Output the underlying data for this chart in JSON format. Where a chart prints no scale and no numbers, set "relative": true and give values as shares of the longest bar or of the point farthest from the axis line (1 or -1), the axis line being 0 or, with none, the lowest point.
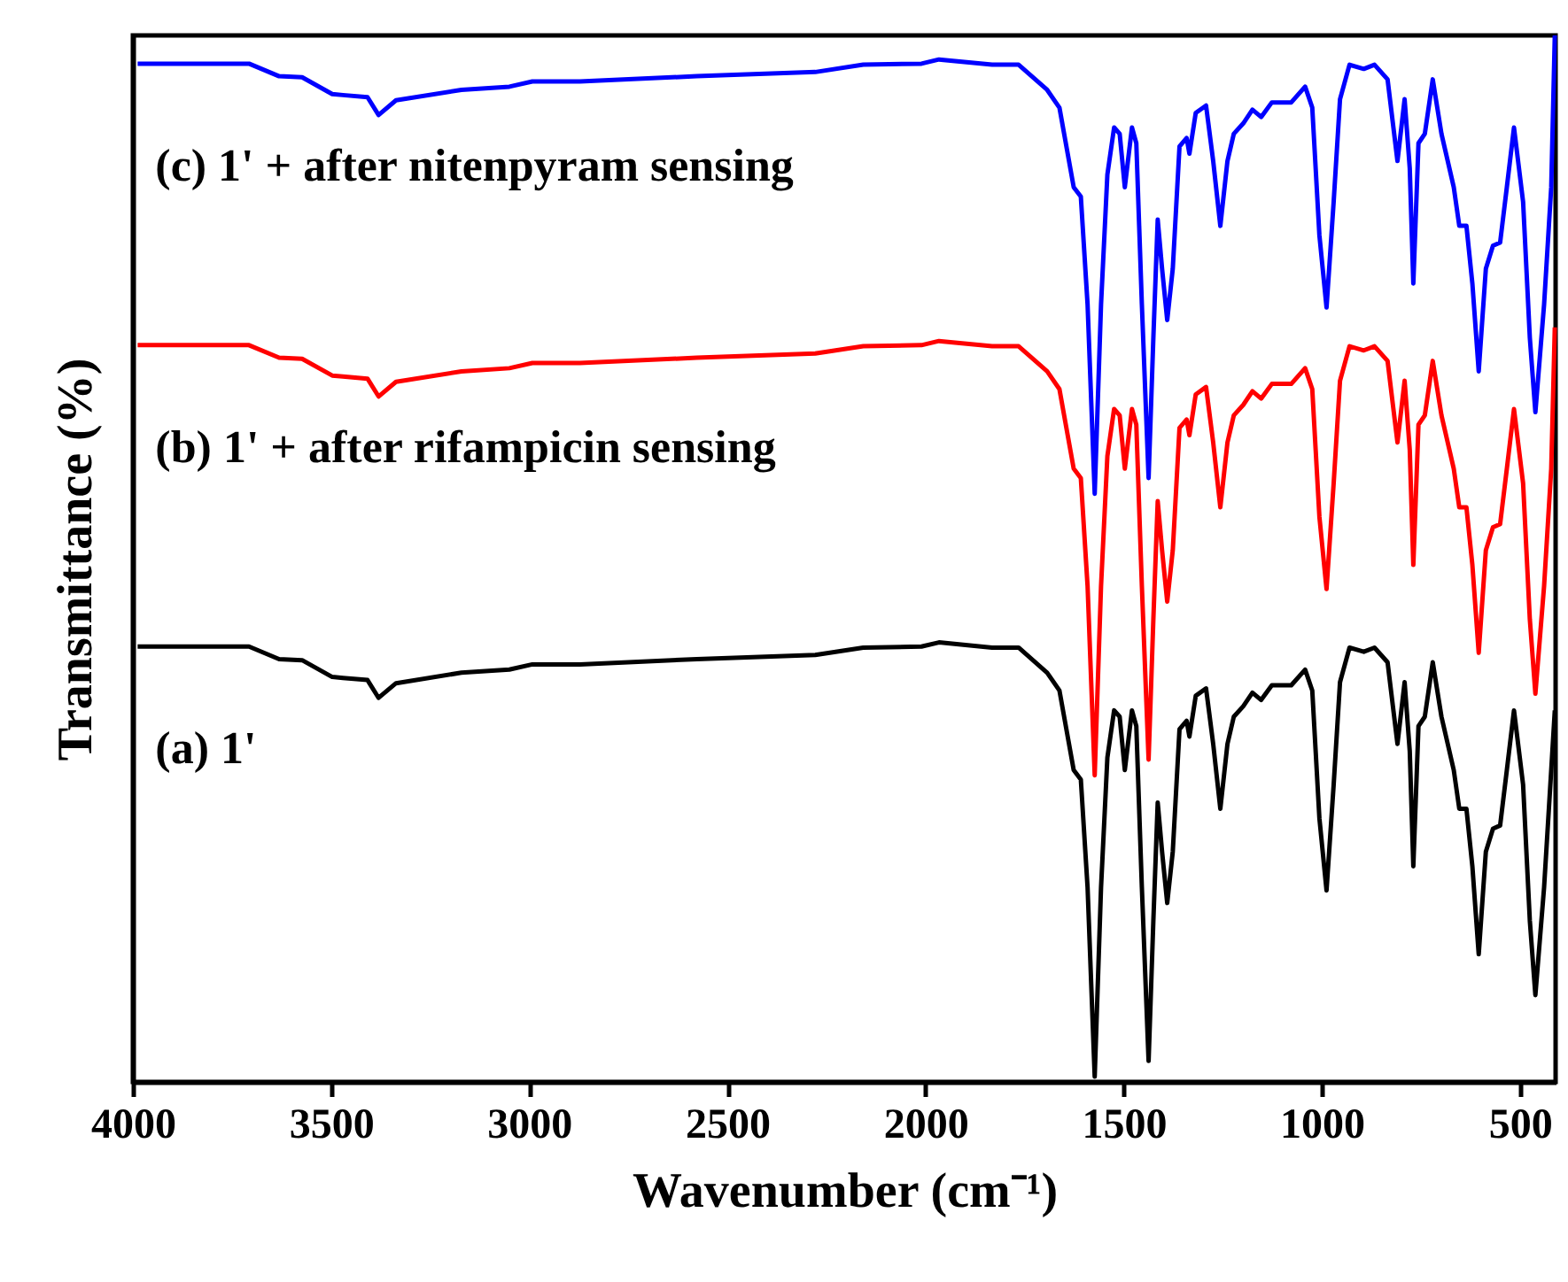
{
  "chart_data": {
    "type": "line",
    "relative": true,
    "xlabel": "Wavenumber (cm⁻¹)",
    "ylabel": "Transmittance (%)",
    "xlim": [
      4000,
      410
    ],
    "xticks": [
      4000,
      3500,
      3000,
      2500,
      2000,
      1500,
      1000,
      500
    ],
    "grid": false,
    "line_style": "solid",
    "marker": "none",
    "x": [
      3988,
      3707,
      3631,
      3573,
      3497,
      3470,
      3408,
      3380,
      3336,
      3171,
      3050,
      2992,
      2872,
      2577,
      2278,
      2157,
      2010,
      1966,
      1832,
      1765,
      1693,
      1662,
      1626,
      1608,
      1591,
      1573,
      1557,
      1541,
      1524,
      1510,
      1497,
      1479,
      1468,
      1454,
      1437,
      1425,
      1414,
      1403,
      1390,
      1376,
      1359,
      1341,
      1334,
      1318,
      1292,
      1274,
      1256,
      1238,
      1222,
      1198,
      1175,
      1153,
      1126,
      1077,
      1042,
      1024,
      1006,
      988,
      970,
      954,
      930,
      894,
      867,
      834,
      809,
      791,
      778,
      769,
      756,
      740,
      720,
      698,
      667,
      653,
      635,
      620,
      604,
      586,
      568,
      550,
      533,
      515,
      492,
      475,
      461,
      439,
      421,
      412
    ],
    "series": [
      {
        "name": "(c) 1' + after nitenpyram sensing",
        "color": "#0000ff",
        "values": [
          0.973,
          0.973,
          0.961,
          0.96,
          0.944,
          0.943,
          0.941,
          0.924,
          0.938,
          0.948,
          0.951,
          0.956,
          0.956,
          0.961,
          0.965,
          0.972,
          0.973,
          0.977,
          0.972,
          0.972,
          0.948,
          0.931,
          0.855,
          0.846,
          0.743,
          0.562,
          0.743,
          0.867,
          0.912,
          0.906,
          0.855,
          0.912,
          0.897,
          0.743,
          0.577,
          0.711,
          0.824,
          0.777,
          0.728,
          0.777,
          0.894,
          0.902,
          0.887,
          0.926,
          0.933,
          0.88,
          0.818,
          0.88,
          0.906,
          0.916,
          0.929,
          0.922,
          0.936,
          0.936,
          0.951,
          0.931,
          0.809,
          0.74,
          0.841,
          0.939,
          0.972,
          0.968,
          0.972,
          0.958,
          0.88,
          0.939,
          0.873,
          0.763,
          0.897,
          0.906,
          0.958,
          0.906,
          0.855,
          0.818,
          0.818,
          0.763,
          0.679,
          0.777,
          0.799,
          0.802,
          0.855,
          0.912,
          0.841,
          0.711,
          0.64,
          0.743,
          0.855,
          1.0
        ]
      },
      {
        "name": "(b) 1' + after rifampicin sensing",
        "color": "#ff0000",
        "values": [
          0.704,
          0.704,
          0.692,
          0.691,
          0.675,
          0.674,
          0.672,
          0.655,
          0.669,
          0.679,
          0.682,
          0.687,
          0.687,
          0.692,
          0.696,
          0.703,
          0.704,
          0.708,
          0.703,
          0.703,
          0.679,
          0.662,
          0.586,
          0.577,
          0.474,
          0.293,
          0.474,
          0.598,
          0.643,
          0.637,
          0.586,
          0.643,
          0.628,
          0.474,
          0.308,
          0.442,
          0.555,
          0.508,
          0.459,
          0.508,
          0.625,
          0.633,
          0.618,
          0.657,
          0.664,
          0.611,
          0.549,
          0.611,
          0.637,
          0.647,
          0.66,
          0.653,
          0.667,
          0.667,
          0.682,
          0.662,
          0.54,
          0.471,
          0.572,
          0.67,
          0.703,
          0.699,
          0.703,
          0.689,
          0.611,
          0.67,
          0.604,
          0.494,
          0.628,
          0.637,
          0.689,
          0.637,
          0.586,
          0.549,
          0.549,
          0.494,
          0.41,
          0.508,
          0.53,
          0.533,
          0.586,
          0.643,
          0.572,
          0.442,
          0.371,
          0.474,
          0.586,
          0.721
        ]
      },
      {
        "name": "(a) 1'",
        "color": "#000000",
        "values": [
          0.416,
          0.416,
          0.404,
          0.403,
          0.387,
          0.386,
          0.384,
          0.367,
          0.381,
          0.391,
          0.394,
          0.399,
          0.399,
          0.404,
          0.408,
          0.415,
          0.416,
          0.42,
          0.415,
          0.415,
          0.391,
          0.374,
          0.298,
          0.289,
          0.186,
          0.005,
          0.186,
          0.31,
          0.355,
          0.349,
          0.298,
          0.355,
          0.34,
          0.186,
          0.02,
          0.154,
          0.267,
          0.22,
          0.171,
          0.22,
          0.337,
          0.345,
          0.33,
          0.369,
          0.376,
          0.323,
          0.261,
          0.323,
          0.349,
          0.359,
          0.372,
          0.365,
          0.379,
          0.379,
          0.394,
          0.374,
          0.252,
          0.183,
          0.284,
          0.382,
          0.415,
          0.411,
          0.415,
          0.401,
          0.323,
          0.382,
          0.316,
          0.206,
          0.34,
          0.349,
          0.401,
          0.349,
          0.298,
          0.261,
          0.261,
          0.206,
          0.122,
          0.22,
          0.242,
          0.245,
          0.298,
          0.355,
          0.284,
          0.154,
          0.083,
          0.186,
          0.298,
          0.355
        ]
      }
    ]
  }
}
